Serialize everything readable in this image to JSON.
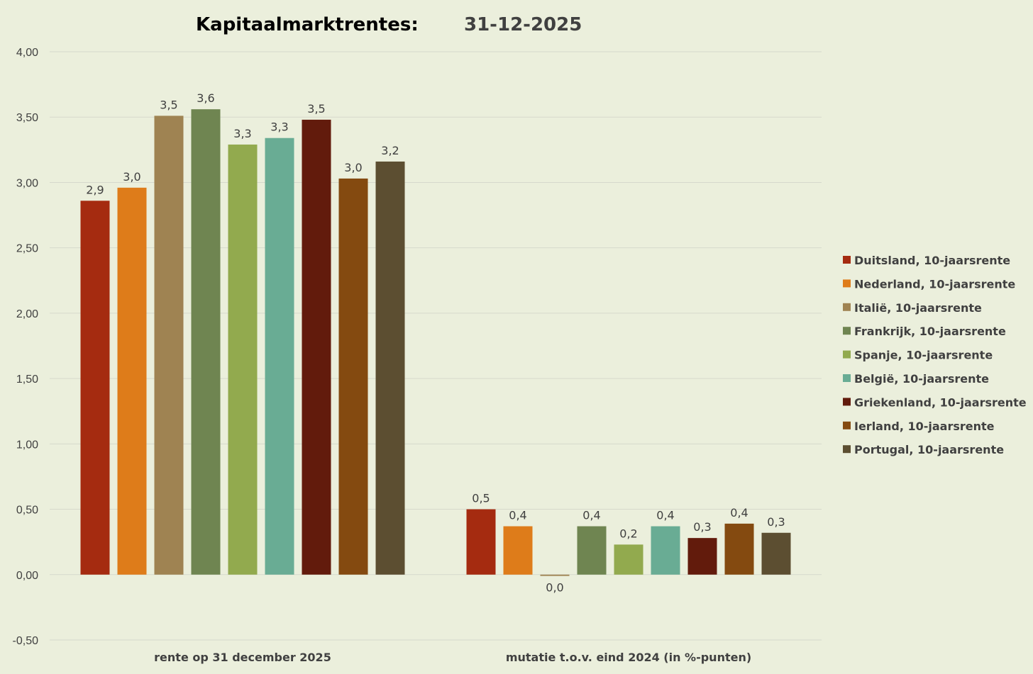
{
  "title": {
    "main": "Kapitaalmarktrentes:",
    "date": "31-12-2025"
  },
  "chart_data": {
    "type": "bar",
    "categories": [
      "rente op 31 december 2025",
      "mutatie t.o.v. eind 2024 (in %-punten)"
    ],
    "ylim": [
      -0.5,
      4.0
    ],
    "yticks": [
      -0.5,
      0.0,
      0.5,
      1.0,
      1.5,
      2.0,
      2.5,
      3.0,
      3.5,
      4.0
    ],
    "ytick_labels": [
      "-0,50",
      "0,00",
      "0,50",
      "1,00",
      "1,50",
      "2,00",
      "2,50",
      "3,00",
      "3,50",
      "4,00"
    ],
    "grid": true,
    "legend_position": "right",
    "series": [
      {
        "name": "Duitsland, 10-jaarsrente",
        "color": "#a52b10",
        "values": [
          2.86,
          0.5
        ],
        "labels": [
          "2,9",
          "0,5"
        ]
      },
      {
        "name": "Nederland, 10-jaarsrente",
        "color": "#de7c1a",
        "values": [
          2.96,
          0.37
        ],
        "labels": [
          "3,0",
          "0,4"
        ]
      },
      {
        "name": "Italië, 10-jaarsrente",
        "color": "#9f8352",
        "values": [
          3.51,
          -0.01
        ],
        "labels": [
          "3,5",
          "0,0"
        ]
      },
      {
        "name": "Frankrijk, 10-jaarsrente",
        "color": "#6f8551",
        "values": [
          3.56,
          0.37
        ],
        "labels": [
          "3,6",
          "0,4"
        ]
      },
      {
        "name": "Spanje, 10-jaarsrente",
        "color": "#92aa4e",
        "values": [
          3.29,
          0.23
        ],
        "labels": [
          "3,3",
          "0,2"
        ]
      },
      {
        "name": "België, 10-jaarsrente",
        "color": "#69ac94",
        "values": [
          3.34,
          0.37
        ],
        "labels": [
          "3,3",
          "0,4"
        ]
      },
      {
        "name": "Griekenland, 10-jaarsrente",
        "color": "#621b0c",
        "values": [
          3.48,
          0.28
        ],
        "labels": [
          "3,5",
          "0,3"
        ]
      },
      {
        "name": "Ierland, 10-jaarsrente",
        "color": "#844a10",
        "values": [
          3.03,
          0.39
        ],
        "labels": [
          "3,0",
          "0,4"
        ]
      },
      {
        "name": "Portugal, 10-jaarsrente",
        "color": "#5c4e31",
        "values": [
          3.16,
          0.32
        ],
        "labels": [
          "3,2",
          "0,3"
        ]
      }
    ]
  }
}
